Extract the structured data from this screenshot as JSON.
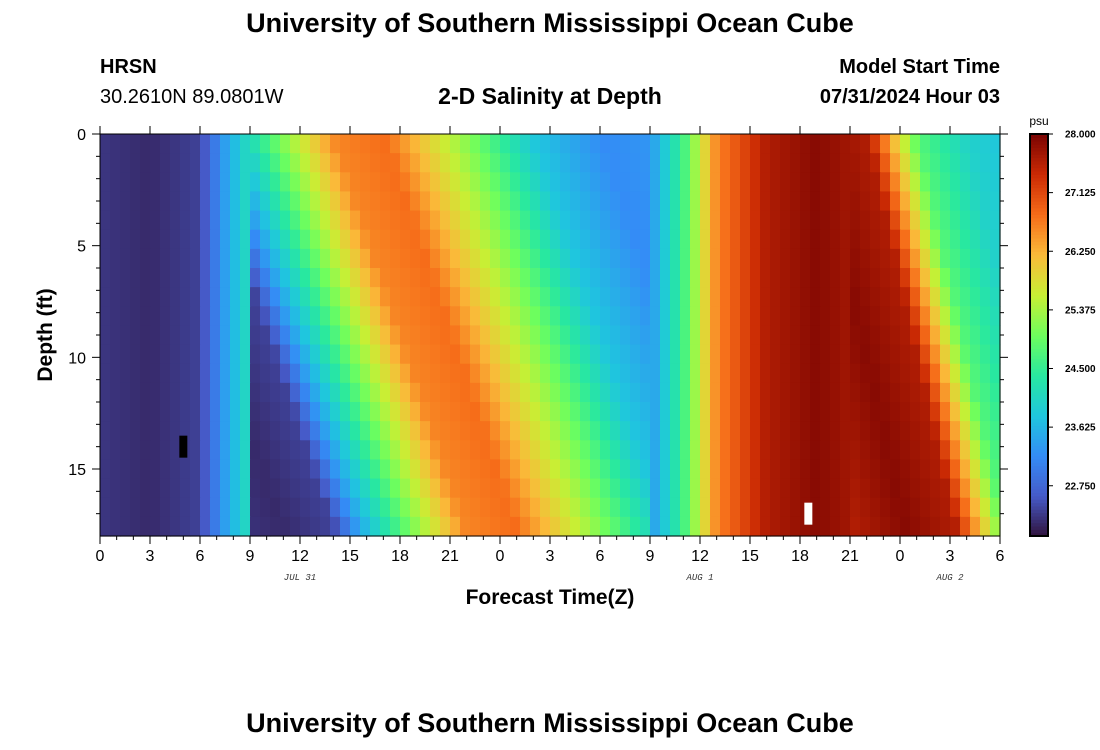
{
  "header": {
    "title": "University of Southern Mississippi Ocean Cube",
    "station": "HRSN",
    "coordinates": "30.2610N  89.0801W",
    "plot_title": "2-D Salinity at Depth",
    "model_start_label": "Model Start Time",
    "model_start_value": "07/31/2024 Hour 03"
  },
  "footer": {
    "title": "University of Southern Mississippi Ocean Cube"
  },
  "chart_data": {
    "type": "heatmap",
    "title": "2-D Salinity at Depth",
    "xlabel": "Forecast Time(Z)",
    "ylabel": "Depth (ft)",
    "x_range_hours": [
      0,
      54
    ],
    "x_ticks": [
      "0",
      "3",
      "6",
      "9",
      "12",
      "15",
      "18",
      "21",
      "0",
      "3",
      "6",
      "9",
      "12",
      "15",
      "18",
      "21",
      "0",
      "3",
      "6"
    ],
    "x_tick_hours": [
      0,
      3,
      6,
      9,
      12,
      15,
      18,
      21,
      24,
      27,
      30,
      33,
      36,
      39,
      42,
      45,
      48,
      51,
      54
    ],
    "date_labels": [
      {
        "label": "JUL 31",
        "hour": 12
      },
      {
        "label": "AUG 1",
        "hour": 36
      },
      {
        "label": "AUG 2",
        "hour": 51
      }
    ],
    "y_range_ft": [
      0,
      18
    ],
    "y_ticks": [
      "0",
      "5",
      "10",
      "15"
    ],
    "y_tick_values": [
      0,
      5,
      10,
      15
    ],
    "colorbar": {
      "unit": "psu",
      "min": 22.0,
      "max": 28.0,
      "labels": [
        "28.000",
        "27.125",
        "26.250",
        "25.375",
        "24.500",
        "23.625",
        "22.750"
      ],
      "label_values": [
        28.0,
        27.125,
        26.25,
        25.375,
        24.5,
        23.625,
        22.75
      ]
    },
    "salinity_psu_by_hour": [
      {
        "hour": 0,
        "value": 22.3
      },
      {
        "hour": 3,
        "value": 22.2
      },
      {
        "hour": 6,
        "value": 22.4
      },
      {
        "hour": 7.5,
        "value": 23.4
      },
      {
        "hour": 9,
        "value": 24.2
      },
      {
        "hour": 11,
        "value": 25.2
      },
      {
        "hour": 14,
        "value": 26.6
      },
      {
        "hour": 17,
        "value": 26.8
      },
      {
        "hour": 20,
        "value": 25.8
      },
      {
        "hour": 23,
        "value": 24.8
      },
      {
        "hour": 26,
        "value": 23.8
      },
      {
        "hour": 30,
        "value": 23.2
      },
      {
        "hour": 33,
        "value": 23.3
      },
      {
        "hour": 35,
        "value": 24.6
      },
      {
        "hour": 37,
        "value": 26.6
      },
      {
        "hour": 40,
        "value": 27.6
      },
      {
        "hour": 43,
        "value": 27.9
      },
      {
        "hour": 46,
        "value": 27.6
      },
      {
        "hour": 47.5,
        "value": 26.2
      },
      {
        "hour": 49,
        "value": 24.8
      },
      {
        "hour": 52,
        "value": 24.0
      },
      {
        "hour": 54,
        "value": 23.8
      }
    ],
    "missing_cells": [
      {
        "hour": 5,
        "depth_ft": 14,
        "color": "#000000"
      },
      {
        "hour": 42.5,
        "depth_ft": 17,
        "color": "#ffffff"
      }
    ]
  }
}
